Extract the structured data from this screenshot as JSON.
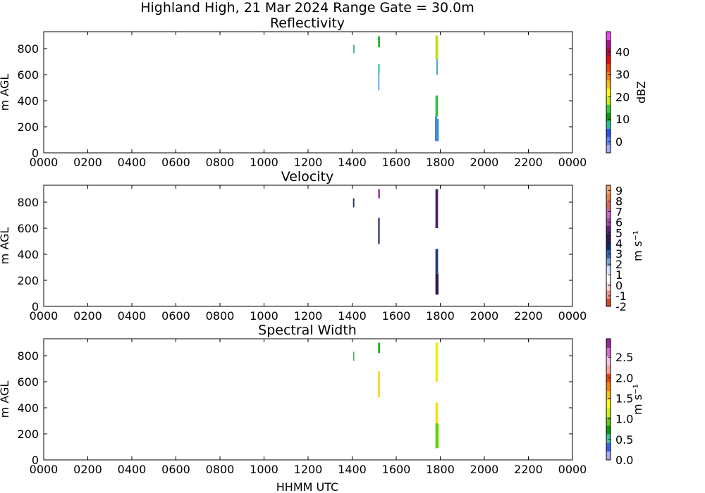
{
  "figure": {
    "suptitle": "Highland High, 21 Mar 2024 Range Gate = 30.0m",
    "shared_xlabel": "HHMM UTC"
  },
  "chart_data": [
    {
      "type": "heatmap",
      "title": "Reflectivity",
      "xlabel": "",
      "ylabel": "m AGL",
      "xticks": [
        "0000",
        "0200",
        "0400",
        "0600",
        "0800",
        "1000",
        "1200",
        "1400",
        "1600",
        "1800",
        "2000",
        "2200",
        "0000"
      ],
      "xlim_hours": [
        0,
        24
      ],
      "ylim": [
        0,
        930
      ],
      "yticks": [
        0,
        200,
        400,
        600,
        800
      ],
      "grid": false,
      "colorbar": {
        "label": "dBZ",
        "range": [
          -5,
          49
        ],
        "ticks": [
          0,
          10,
          20,
          30,
          40
        ],
        "ticklabels": [
          "0",
          "10",
          "20",
          "30",
          "40"
        ],
        "colors": [
          "#a8a8ff",
          "#6080ff",
          "#2050ff",
          "#20c0a0",
          "#00a000",
          "#30d030",
          "#c8f000",
          "#ffff00",
          "#ffc000",
          "#ff8000",
          "#ff4000",
          "#ff0000",
          "#c00040",
          "#c000a0",
          "#ff40ff"
        ]
      },
      "cells": [
        {
          "t": 14.05,
          "dt": 0.06,
          "h0": 765,
          "h1": 830,
          "color": "#30c070"
        },
        {
          "t": 15.18,
          "dt": 0.08,
          "h0": 810,
          "h1": 895,
          "color": "#00b000"
        },
        {
          "t": 15.18,
          "dt": 0.07,
          "h0": 610,
          "h1": 680,
          "color": "#30c090"
        },
        {
          "t": 15.18,
          "dt": 0.06,
          "h0": 480,
          "h1": 610,
          "color": "#60a0e0"
        },
        {
          "t": 17.78,
          "dt": 0.12,
          "h0": 720,
          "h1": 900,
          "color": "#c8e000"
        },
        {
          "t": 17.82,
          "dt": 0.07,
          "h0": 600,
          "h1": 720,
          "color": "#40b0d0"
        },
        {
          "t": 17.78,
          "dt": 0.12,
          "h0": 280,
          "h1": 440,
          "color": "#30c040"
        },
        {
          "t": 17.76,
          "dt": 0.1,
          "h0": 90,
          "h1": 280,
          "color": "#3090e0"
        },
        {
          "t": 17.86,
          "dt": 0.07,
          "h0": 90,
          "h1": 260,
          "color": "#4080d0"
        }
      ]
    },
    {
      "type": "heatmap",
      "title": "Velocity",
      "xlabel": "",
      "ylabel": "m AGL",
      "xticks": [
        "0000",
        "0200",
        "0400",
        "0600",
        "0800",
        "1000",
        "1200",
        "1400",
        "1600",
        "1800",
        "2000",
        "2200",
        "0000"
      ],
      "xlim_hours": [
        0,
        24
      ],
      "ylim": [
        0,
        930
      ],
      "yticks": [
        0,
        200,
        400,
        600,
        800
      ],
      "grid": false,
      "colorbar": {
        "label": "m s⁻¹",
        "range": [
          -2,
          9.5
        ],
        "ticks": [
          -2,
          -1,
          0,
          1,
          2,
          3,
          4,
          5,
          6,
          7,
          8,
          9
        ],
        "ticklabels": [
          "-2",
          "-1",
          "0",
          "1",
          "2",
          "3",
          "4",
          "5",
          "6",
          "7",
          "8",
          "9"
        ],
        "colors": [
          "#e04020",
          "#f09080",
          "#ffd0d0",
          "#ffffff",
          "#d0e0ff",
          "#80a0e0",
          "#3060c0",
          "#102870",
          "#301850",
          "#602080",
          "#b040b0",
          "#d060d0",
          "#e06060",
          "#f08040",
          "#ffa060"
        ]
      },
      "cells": [
        {
          "t": 14.04,
          "dt": 0.06,
          "h0": 760,
          "h1": 830,
          "color": "#1a3070"
        },
        {
          "t": 15.18,
          "dt": 0.08,
          "h0": 830,
          "h1": 900,
          "color": "#a030a0"
        },
        {
          "t": 15.18,
          "dt": 0.07,
          "h0": 480,
          "h1": 680,
          "color": "#1a2a60"
        },
        {
          "t": 17.78,
          "dt": 0.12,
          "h0": 600,
          "h1": 900,
          "color": "#502070"
        },
        {
          "t": 17.78,
          "dt": 0.12,
          "h0": 250,
          "h1": 440,
          "color": "#203a80"
        },
        {
          "t": 17.78,
          "dt": 0.14,
          "h0": 90,
          "h1": 250,
          "color": "#301850"
        }
      ]
    },
    {
      "type": "heatmap",
      "title": "Spectral Width",
      "xlabel": "HHMM UTC",
      "ylabel": "m AGL",
      "xticks": [
        "0000",
        "0200",
        "0400",
        "0600",
        "0800",
        "1000",
        "1200",
        "1400",
        "1600",
        "1800",
        "2000",
        "2200",
        "0000"
      ],
      "xlim_hours": [
        0,
        24
      ],
      "ylim": [
        0,
        930
      ],
      "yticks": [
        0,
        200,
        400,
        600,
        800
      ],
      "grid": false,
      "colorbar": {
        "label": "m s⁻¹",
        "range": [
          0,
          2.95
        ],
        "ticks": [
          0.0,
          0.5,
          1.0,
          1.5,
          2.0,
          2.5
        ],
        "ticklabels": [
          "0.0",
          "0.5",
          "1.0",
          "1.5",
          "2.0",
          "2.5"
        ],
        "colors": [
          "#a8a8ff",
          "#3060ff",
          "#40c0a0",
          "#00a000",
          "#60d000",
          "#d0f000",
          "#ffff00",
          "#ffc000",
          "#ff8000",
          "#ff4000",
          "#ffa0a0",
          "#ffc0e0",
          "#e060e0",
          "#a020a0"
        ]
      },
      "cells": [
        {
          "t": 14.04,
          "dt": 0.06,
          "h0": 760,
          "h1": 830,
          "color": "#40c060"
        },
        {
          "t": 15.18,
          "dt": 0.08,
          "h0": 820,
          "h1": 900,
          "color": "#00b000"
        },
        {
          "t": 15.18,
          "dt": 0.08,
          "h0": 480,
          "h1": 680,
          "color": "#ffd000"
        },
        {
          "t": 17.78,
          "dt": 0.12,
          "h0": 600,
          "h1": 900,
          "color": "#f0f000"
        },
        {
          "t": 17.78,
          "dt": 0.12,
          "h0": 280,
          "h1": 440,
          "color": "#ffe000"
        },
        {
          "t": 17.78,
          "dt": 0.14,
          "h0": 90,
          "h1": 280,
          "color": "#60d000"
        }
      ]
    }
  ]
}
